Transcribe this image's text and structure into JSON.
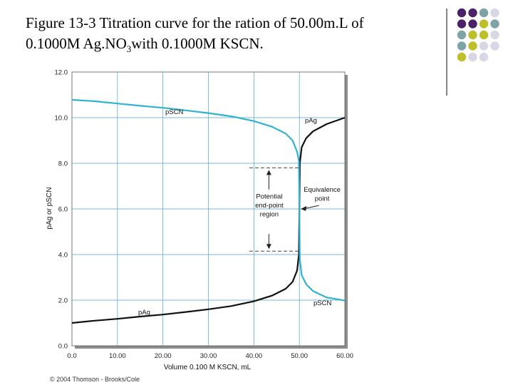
{
  "slide": {
    "title_line1": "Figure 13-3 Titration curve for the ration of 50.00m.L of",
    "title_line2_a": "0.1000M Ag.NO",
    "title_line2_sub": "3",
    "title_line2_b": "with 0.1000M KSCN.",
    "copyright": "© 2004 Thomson - Brooks/Cole"
  },
  "decoration": {
    "dot_colors": [
      "#4b2169",
      "#7ea3a5",
      "#bdbf2b",
      "#d8d8e4"
    ]
  },
  "chart_data": {
    "type": "line",
    "xlabel": "Volume 0.100 M KSCN, mL",
    "ylabel": "pAg or pSCN",
    "xlim": [
      0,
      60
    ],
    "ylim": [
      0,
      12
    ],
    "x_ticks": [
      "0.0",
      "10.00",
      "20.00",
      "30.00",
      "40.00",
      "50.00",
      "60.00"
    ],
    "y_ticks": [
      "0.0",
      "2.0",
      "4.0",
      "6.0",
      "8.0",
      "10.0",
      "12.0"
    ],
    "grid": true,
    "series": [
      {
        "name": "pAg",
        "color": "#111111",
        "x": [
          0,
          5,
          10,
          15,
          20,
          25,
          30,
          35,
          40,
          44,
          47,
          48.5,
          49.5,
          49.9,
          50.0,
          50.1,
          50.5,
          51.5,
          53,
          56,
          60
        ],
        "y": [
          1.0,
          1.1,
          1.18,
          1.28,
          1.37,
          1.48,
          1.6,
          1.74,
          1.95,
          2.2,
          2.5,
          2.8,
          3.3,
          4.0,
          6.0,
          8.0,
          8.7,
          9.1,
          9.4,
          9.72,
          10.0
        ]
      },
      {
        "name": "pSCN",
        "color": "#2fb3d1",
        "x": [
          0,
          5,
          10,
          15,
          20,
          25,
          30,
          35,
          40,
          44,
          47,
          48.5,
          49.5,
          49.9,
          50.0,
          50.1,
          50.5,
          51.5,
          53,
          56,
          60
        ],
        "y": [
          10.78,
          10.72,
          10.62,
          10.52,
          10.43,
          10.32,
          10.2,
          10.06,
          9.85,
          9.6,
          9.3,
          9.0,
          8.5,
          8.1,
          6.0,
          3.8,
          3.1,
          2.7,
          2.4,
          2.12,
          1.98
        ]
      }
    ],
    "annotations": {
      "curve_label_pscn_top": "pSCN",
      "curve_label_pag_top": "pAg",
      "curve_label_pag_bottom": "pAg",
      "curve_label_pscn_bottom": "pSCN",
      "endpoint_region_lines": [
        "Potential",
        "end-point",
        "region"
      ],
      "equivalence_lines": [
        "Equivalence",
        "point"
      ],
      "endpoint_region_y": [
        4.15,
        7.8
      ],
      "equivalence_x": 50.0
    }
  }
}
